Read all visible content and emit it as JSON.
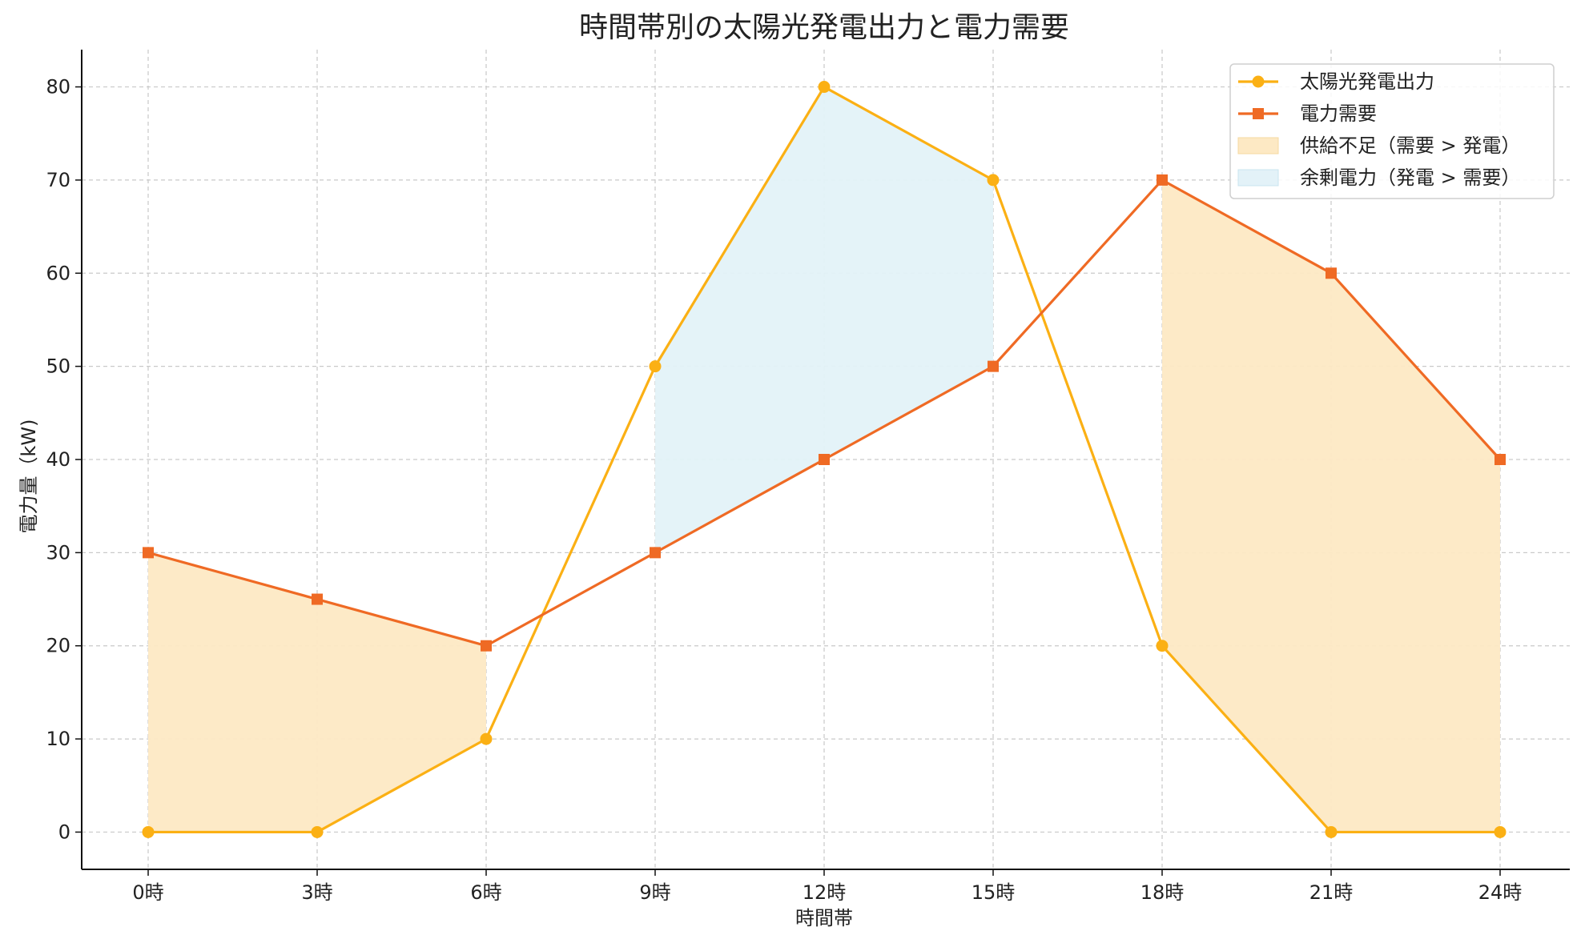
{
  "chart_data": {
    "type": "line",
    "title": "時間帯別の太陽光発電出力と電力需要",
    "xlabel": "時間帯",
    "ylabel": "電力量（kW)",
    "categories": [
      "0時",
      "3時",
      "6時",
      "9時",
      "12時",
      "15時",
      "18時",
      "21時",
      "24時"
    ],
    "series": [
      {
        "name": "太陽光発電出力",
        "values": [
          0,
          0,
          10,
          50,
          80,
          70,
          20,
          0,
          0
        ],
        "color": "#fbb014",
        "marker": "circle"
      },
      {
        "name": "電力需要",
        "values": [
          30,
          25,
          20,
          30,
          40,
          50,
          70,
          60,
          40
        ],
        "color": "#ef6a24",
        "marker": "square"
      }
    ],
    "fills": [
      {
        "name": "供給不足（需要 > 発電）",
        "color": "#fde9c4",
        "ranges": [
          [
            0,
            2
          ],
          [
            6,
            8
          ]
        ]
      },
      {
        "name": "余剰電力（発電 > 需要）",
        "color": "#e3f2f8",
        "ranges": [
          [
            3,
            5
          ]
        ]
      }
    ],
    "ylim": [
      -4,
      84
    ],
    "yticks": [
      0,
      10,
      20,
      30,
      40,
      50,
      60,
      70,
      80
    ],
    "grid": true,
    "legend_position": "top-right"
  }
}
